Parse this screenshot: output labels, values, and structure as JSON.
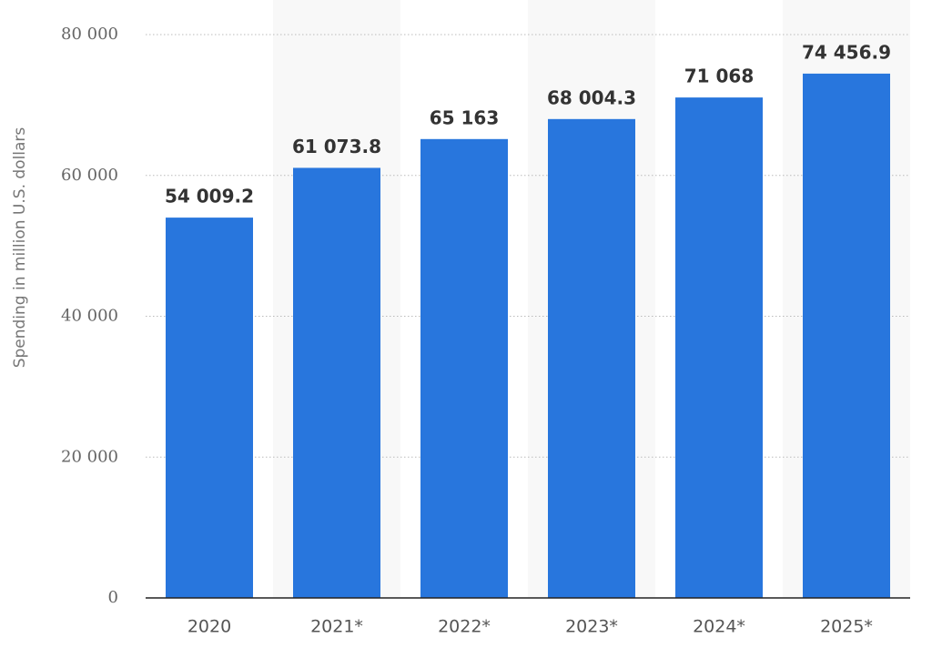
{
  "chart_data": {
    "type": "bar",
    "y_label": "Spending in million U.S. dollars",
    "categories": [
      "2020",
      "2021*",
      "2022*",
      "2023*",
      "2024*",
      "2025*"
    ],
    "values": [
      54009.2,
      61073.8,
      65163,
      68004.3,
      71068,
      74456.9
    ],
    "value_labels": [
      "54 009.2",
      "61 073.8",
      "65 163",
      "68 004.3",
      "71 068",
      "74 456.9"
    ],
    "color": "#2876dd",
    "ylim": [
      0,
      80000
    ],
    "yticks": [
      0,
      {
        "value": 20000,
        "label": "20 000"
      },
      {
        "value": 40000,
        "label": "40 000"
      },
      {
        "value": 60000,
        "label": "60 000"
      },
      {
        "value": 80000,
        "label": "80 000"
      }
    ],
    "grid": true
  }
}
